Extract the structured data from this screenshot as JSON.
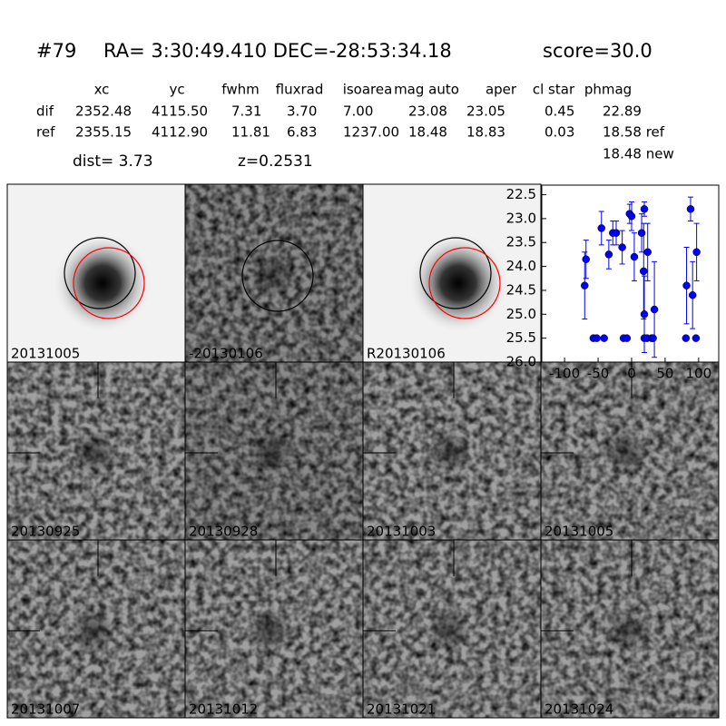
{
  "header": {
    "id": "#79",
    "coords": "RA= 3:30:49.410 DEC=-28:53:34.18",
    "score": "score=30.0"
  },
  "table": {
    "columns": [
      "xc",
      "yc",
      "fwhm",
      "fluxrad",
      "isoarea",
      "mag auto",
      "aper",
      "cl star",
      "phmag"
    ],
    "rows": [
      {
        "label": "dif",
        "cells": [
          "2352.48",
          "4115.50",
          "7.31",
          "3.70",
          "7.00",
          "23.08",
          "23.05",
          "0.45",
          "22.89"
        ]
      },
      {
        "label": "ref",
        "cells": [
          "2355.15",
          "4112.90",
          "11.81",
          "6.83",
          "1237.00",
          "18.48",
          "18.83",
          "0.03",
          "18.58 ref"
        ]
      }
    ],
    "extra": "18.48 new"
  },
  "dist": "dist=  3.73",
  "z": "z=0.2531",
  "panels": [
    {
      "label": "20131005"
    },
    {
      "label": "-20130106"
    },
    {
      "label": "R20130106"
    },
    {
      "label": "20130925"
    },
    {
      "label": "20130928"
    },
    {
      "label": "20131003"
    },
    {
      "label": "20131005",
      "color": "#ff0000"
    },
    {
      "label": "20131007"
    },
    {
      "label": "20131012"
    },
    {
      "label": "20131021"
    },
    {
      "label": "20131024"
    }
  ],
  "chart_data": {
    "type": "scatter",
    "xlim": [
      -134,
      130
    ],
    "xticks": [
      -100,
      -50,
      0,
      50,
      100
    ],
    "ylim": [
      26.0,
      22.3
    ],
    "yticks": [
      22.5,
      {
        "value": 23,
        "label": "23.0"
      },
      23.5,
      {
        "value": 24,
        "label": "24.0"
      },
      24.5,
      {
        "value": 25,
        "label": "25.0"
      },
      25.5,
      {
        "value": 26,
        "label": "26.0"
      }
    ],
    "series": [
      {
        "color": "#0000ff",
        "x": [
          -70,
          -68,
          -45,
          -34,
          -28,
          -23,
          -14,
          -3,
          0,
          4,
          15,
          18,
          19,
          19,
          24,
          34,
          82,
          88,
          91,
          97
        ],
        "values": [
          24.4,
          23.85,
          23.2,
          23.75,
          23.3,
          23.3,
          23.6,
          22.9,
          22.95,
          23.8,
          23.3,
          24.1,
          22.8,
          25.0,
          23.7,
          24.9,
          24.4,
          22.8,
          24.6,
          23.7
        ],
        "errors": [
          0.7,
          0.4,
          0.35,
          0.3,
          0.25,
          0.25,
          0.35,
          0.2,
          0.3,
          0.5,
          0.4,
          1.0,
          0.15,
          0.8,
          0.6,
          1.0,
          0.8,
          0.25,
          0.7,
          0.6
        ]
      },
      {
        "color": "#0000ff",
        "x": [
          -57,
          -52,
          -41,
          -12,
          -7,
          19,
          23,
          30,
          32,
          81,
          96
        ],
        "values": [
          25.5,
          25.5,
          25.5,
          25.5,
          25.5,
          25.5,
          25.5,
          25.5,
          25.5,
          25.5,
          25.5
        ]
      }
    ]
  }
}
